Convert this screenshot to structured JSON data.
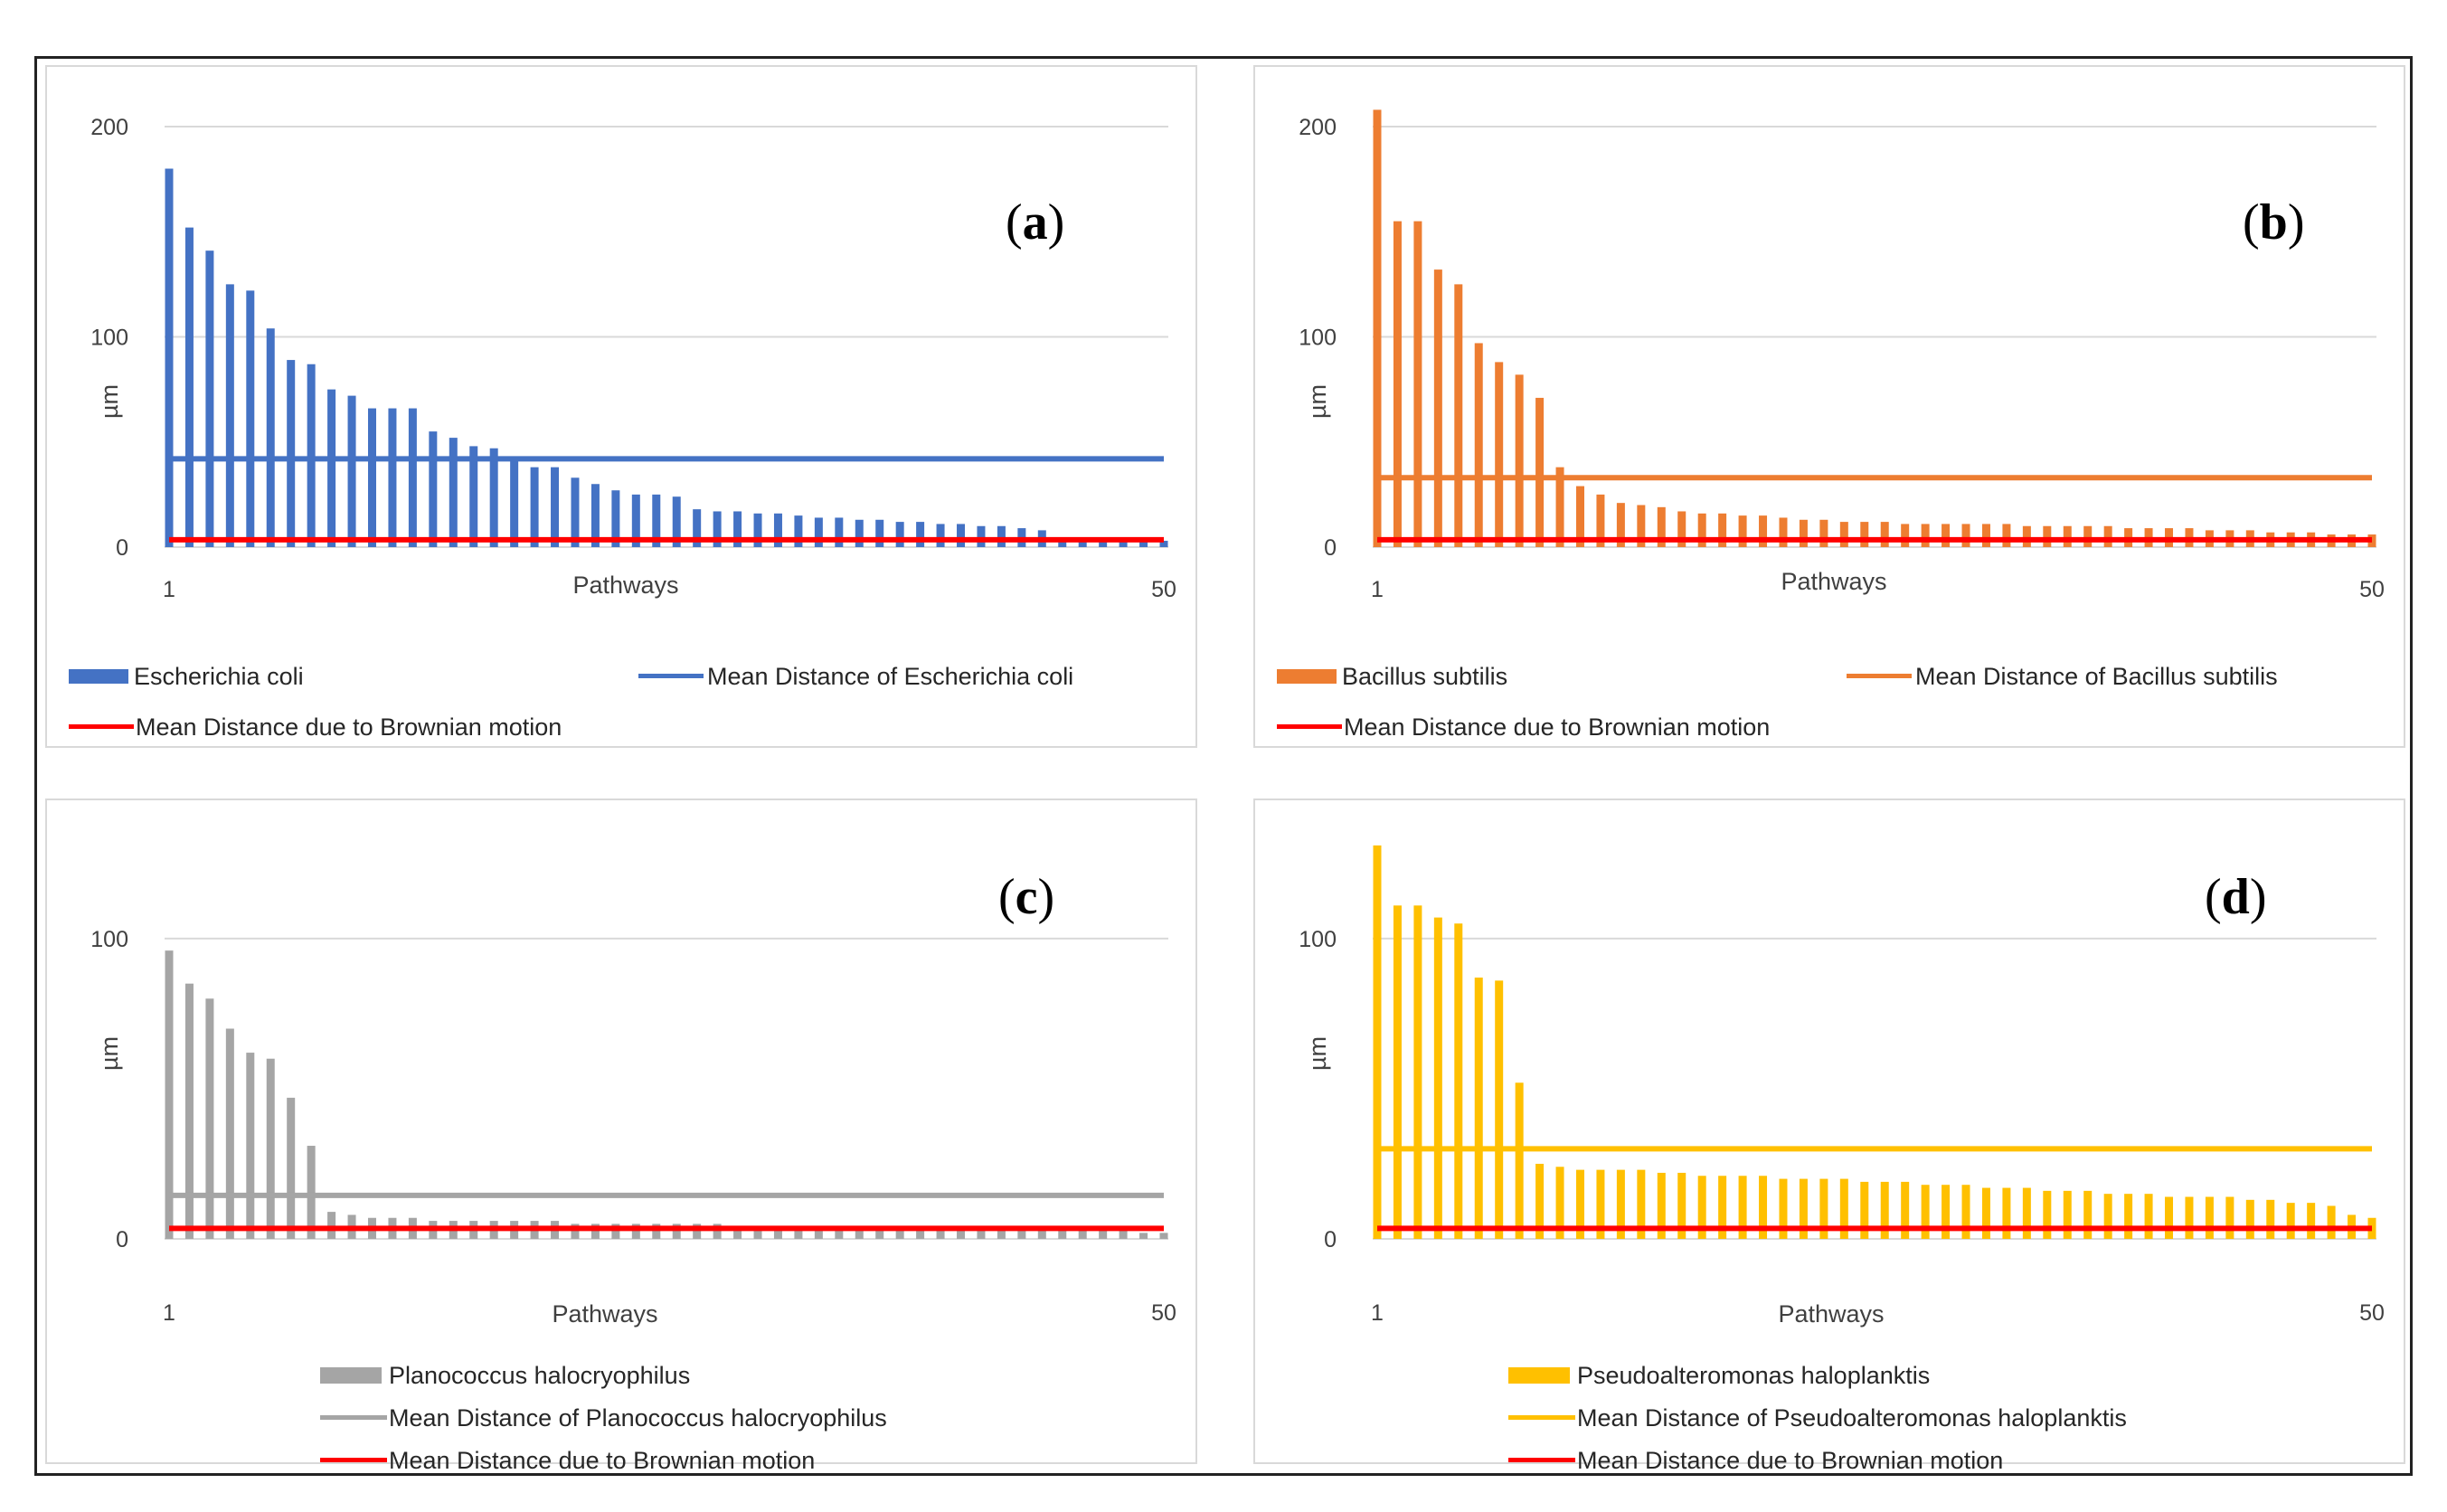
{
  "chart_data": [
    {
      "type": "bar",
      "panel_label": "a",
      "ylabel": "µm",
      "xlabel": "Pathways",
      "ylim": [
        0,
        200
      ],
      "yticks": [
        "0",
        "100",
        "200"
      ],
      "xticks": [
        "1",
        "50"
      ],
      "colors": {
        "bars": "#4472c4",
        "mean": "#4472c4",
        "brownian": "#ff0000"
      },
      "categories": [
        1,
        2,
        3,
        4,
        5,
        6,
        7,
        8,
        9,
        10,
        11,
        12,
        13,
        14,
        15,
        16,
        17,
        18,
        19,
        20,
        21,
        22,
        23,
        24,
        25,
        26,
        27,
        28,
        29,
        30,
        31,
        32,
        33,
        34,
        35,
        36,
        37,
        38,
        39,
        40,
        41,
        42,
        43,
        44,
        45,
        46,
        47,
        48,
        49,
        50
      ],
      "series": [
        {
          "name": "Escherichia coli",
          "kind": "bar",
          "values": [
            180,
            152,
            141,
            125,
            122,
            104,
            89,
            87,
            75,
            72,
            66,
            66,
            66,
            55,
            52,
            48,
            47,
            42,
            38,
            38,
            33,
            30,
            27,
            25,
            25,
            24,
            18,
            17,
            17,
            16,
            16,
            15,
            14,
            14,
            13,
            13,
            12,
            12,
            11,
            11,
            10,
            10,
            9,
            8,
            4,
            4,
            3,
            3,
            3,
            3
          ]
        },
        {
          "name": "Mean Distance of Escherichia coli",
          "kind": "line",
          "value": 42
        },
        {
          "name": "Mean Distance due to Brownian motion",
          "kind": "line",
          "value": 3.5
        }
      ]
    },
    {
      "type": "bar",
      "panel_label": "b",
      "ylabel": "µm",
      "xlabel": "Pathways",
      "ylim": [
        0,
        200
      ],
      "yticks": [
        "0",
        "100",
        "200"
      ],
      "xticks": [
        "1",
        "50"
      ],
      "colors": {
        "bars": "#ed7d31",
        "mean": "#ed7d31",
        "brownian": "#ff0000"
      },
      "categories": [
        1,
        2,
        3,
        4,
        5,
        6,
        7,
        8,
        9,
        10,
        11,
        12,
        13,
        14,
        15,
        16,
        17,
        18,
        19,
        20,
        21,
        22,
        23,
        24,
        25,
        26,
        27,
        28,
        29,
        30,
        31,
        32,
        33,
        34,
        35,
        36,
        37,
        38,
        39,
        40,
        41,
        42,
        43,
        44,
        45,
        46,
        47,
        48,
        49,
        50
      ],
      "series": [
        {
          "name": "Bacillus subtilis",
          "kind": "bar",
          "values": [
            208,
            155,
            155,
            132,
            125,
            97,
            88,
            82,
            71,
            38,
            29,
            25,
            21,
            20,
            19,
            17,
            16,
            16,
            15,
            15,
            14,
            13,
            13,
            12,
            12,
            12,
            11,
            11,
            11,
            11,
            11,
            11,
            10,
            10,
            10,
            10,
            10,
            9,
            9,
            9,
            9,
            8,
            8,
            8,
            7,
            7,
            7,
            6,
            6,
            6
          ]
        },
        {
          "name": "Mean Distance of Bacillus subtilis",
          "kind": "line",
          "value": 33
        },
        {
          "name": "Mean Distance due to Brownian motion",
          "kind": "line",
          "value": 3.5
        }
      ]
    },
    {
      "type": "bar",
      "panel_label": "c",
      "ylabel": "µm",
      "xlabel": "Pathways",
      "ylim": [
        0,
        140
      ],
      "yticks": [
        "0",
        "100"
      ],
      "xticks": [
        "1",
        "50"
      ],
      "colors": {
        "bars": "#a5a5a5",
        "mean": "#a5a5a5",
        "brownian": "#ff0000"
      },
      "categories": [
        1,
        2,
        3,
        4,
        5,
        6,
        7,
        8,
        9,
        10,
        11,
        12,
        13,
        14,
        15,
        16,
        17,
        18,
        19,
        20,
        21,
        22,
        23,
        24,
        25,
        26,
        27,
        28,
        29,
        30,
        31,
        32,
        33,
        34,
        35,
        36,
        37,
        38,
        39,
        40,
        41,
        42,
        43,
        44,
        45,
        46,
        47,
        48,
        49,
        50
      ],
      "series": [
        {
          "name": "Planococcus halocryophilus",
          "kind": "bar",
          "values": [
            96,
            85,
            80,
            70,
            62,
            60,
            47,
            31,
            9,
            8,
            7,
            7,
            7,
            6,
            6,
            6,
            6,
            6,
            6,
            6,
            5,
            5,
            5,
            5,
            5,
            5,
            5,
            5,
            4,
            4,
            4,
            4,
            4,
            4,
            4,
            4,
            4,
            3,
            3,
            3,
            3,
            3,
            3,
            3,
            3,
            3,
            3,
            3,
            2,
            2
          ]
        },
        {
          "name": "Mean Distance of Planococcus halocryophilus",
          "kind": "line",
          "value": 14.5
        },
        {
          "name": "Mean Distance due to Brownian motion",
          "kind": "line",
          "value": 3.5
        }
      ]
    },
    {
      "type": "bar",
      "panel_label": "d",
      "ylabel": "µm",
      "xlabel": "Pathways",
      "ylim": [
        0,
        140
      ],
      "yticks": [
        "0",
        "100"
      ],
      "xticks": [
        "1",
        "50"
      ],
      "colors": {
        "bars": "#ffc000",
        "mean": "#ffc000",
        "brownian": "#ff0000"
      },
      "categories": [
        1,
        2,
        3,
        4,
        5,
        6,
        7,
        8,
        9,
        10,
        11,
        12,
        13,
        14,
        15,
        16,
        17,
        18,
        19,
        20,
        21,
        22,
        23,
        24,
        25,
        26,
        27,
        28,
        29,
        30,
        31,
        32,
        33,
        34,
        35,
        36,
        37,
        38,
        39,
        40,
        41,
        42,
        43,
        44,
        45,
        46,
        47,
        48,
        49,
        50
      ],
      "series": [
        {
          "name": "Pseudoalteromonas haloplanktis",
          "kind": "bar",
          "values": [
            131,
            111,
            111,
            107,
            105,
            87,
            86,
            52,
            25,
            24,
            23,
            23,
            23,
            23,
            22,
            22,
            21,
            21,
            21,
            21,
            20,
            20,
            20,
            20,
            19,
            19,
            19,
            18,
            18,
            18,
            17,
            17,
            17,
            16,
            16,
            16,
            15,
            15,
            15,
            14,
            14,
            14,
            14,
            13,
            13,
            12,
            12,
            11,
            8,
            7
          ]
        },
        {
          "name": "Mean Distance of Pseudoalteromonas haloplanktis",
          "kind": "line",
          "value": 30
        },
        {
          "name": "Mean Distance due to Brownian motion",
          "kind": "line",
          "value": 3.5
        }
      ]
    }
  ]
}
